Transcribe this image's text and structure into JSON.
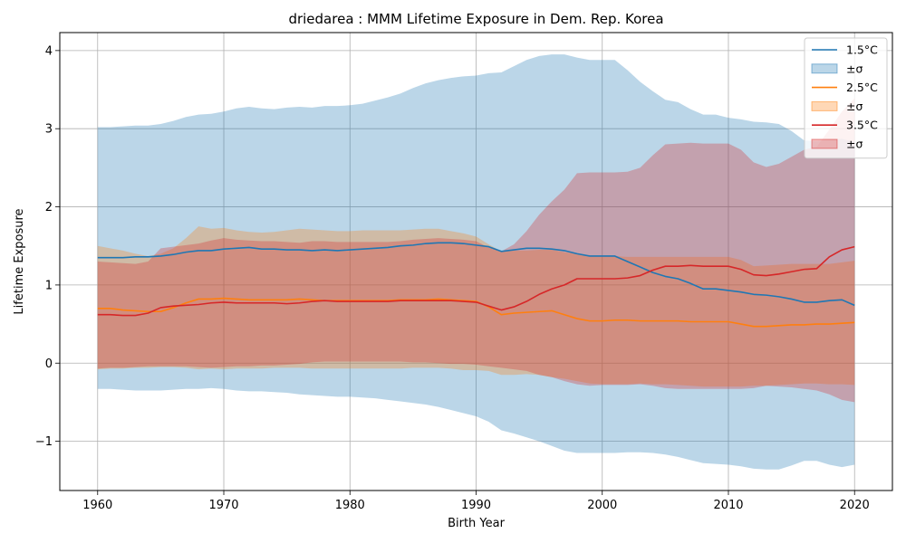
{
  "chart_data": {
    "type": "line",
    "title": "driedarea : MMM Lifetime Exposure in Dem. Rep. Korea",
    "xlabel": "Birth Year",
    "ylabel": "Lifetime Exposure",
    "xlim": [
      1957,
      2023
    ],
    "ylim": [
      -1.63,
      4.23
    ],
    "xticks": [
      1960,
      1970,
      1980,
      1990,
      2000,
      2010,
      2020
    ],
    "xtick_labels": [
      "1960",
      "1970",
      "1980",
      "1990",
      "2000",
      "2010",
      "2020"
    ],
    "yticks": [
      -1,
      0,
      1,
      2,
      3,
      4
    ],
    "ytick_labels": [
      "−1",
      "0",
      "1",
      "2",
      "3",
      "4"
    ],
    "grid": true,
    "legend_position": "top-right",
    "x": [
      1960,
      1961,
      1962,
      1963,
      1964,
      1965,
      1966,
      1967,
      1968,
      1969,
      1970,
      1971,
      1972,
      1973,
      1974,
      1975,
      1976,
      1977,
      1978,
      1979,
      1980,
      1981,
      1982,
      1983,
      1984,
      1985,
      1986,
      1987,
      1988,
      1989,
      1990,
      1991,
      1992,
      1993,
      1994,
      1995,
      1996,
      1997,
      1998,
      1999,
      2000,
      2001,
      2002,
      2003,
      2004,
      2005,
      2006,
      2007,
      2008,
      2009,
      2010,
      2011,
      2012,
      2013,
      2014,
      2015,
      2016,
      2017,
      2018,
      2019,
      2020
    ],
    "series": [
      {
        "name": "1.5°C",
        "band_label": "±σ",
        "color": "#1f77b4",
        "values": [
          1.35,
          1.35,
          1.35,
          1.36,
          1.36,
          1.37,
          1.39,
          1.42,
          1.44,
          1.44,
          1.46,
          1.47,
          1.48,
          1.46,
          1.46,
          1.45,
          1.45,
          1.44,
          1.45,
          1.44,
          1.45,
          1.46,
          1.47,
          1.48,
          1.5,
          1.51,
          1.53,
          1.54,
          1.54,
          1.53,
          1.51,
          1.49,
          1.43,
          1.45,
          1.47,
          1.47,
          1.46,
          1.44,
          1.4,
          1.37,
          1.37,
          1.37,
          1.3,
          1.23,
          1.16,
          1.11,
          1.08,
          1.02,
          0.95,
          0.95,
          0.93,
          0.91,
          0.88,
          0.87,
          0.85,
          0.82,
          0.78,
          0.78,
          0.8,
          0.81,
          0.74
        ],
        "upper": [
          3.02,
          3.02,
          3.03,
          3.04,
          3.04,
          3.06,
          3.1,
          3.15,
          3.18,
          3.19,
          3.22,
          3.26,
          3.28,
          3.26,
          3.25,
          3.27,
          3.28,
          3.27,
          3.29,
          3.29,
          3.3,
          3.32,
          3.36,
          3.4,
          3.45,
          3.52,
          3.58,
          3.62,
          3.65,
          3.67,
          3.68,
          3.71,
          3.72,
          3.8,
          3.88,
          3.93,
          3.95,
          3.95,
          3.91,
          3.88,
          3.88,
          3.88,
          3.75,
          3.6,
          3.48,
          3.37,
          3.34,
          3.25,
          3.18,
          3.18,
          3.14,
          3.12,
          3.09,
          3.08,
          3.06,
          2.97,
          2.85,
          2.84,
          2.86,
          2.87,
          2.83
        ],
        "lower": [
          -0.33,
          -0.33,
          -0.34,
          -0.35,
          -0.35,
          -0.35,
          -0.34,
          -0.33,
          -0.33,
          -0.32,
          -0.33,
          -0.35,
          -0.36,
          -0.36,
          -0.37,
          -0.38,
          -0.4,
          -0.41,
          -0.42,
          -0.43,
          -0.43,
          -0.44,
          -0.45,
          -0.47,
          -0.49,
          -0.51,
          -0.53,
          -0.56,
          -0.6,
          -0.64,
          -0.68,
          -0.75,
          -0.86,
          -0.9,
          -0.95,
          -1.0,
          -1.06,
          -1.12,
          -1.15,
          -1.15,
          -1.15,
          -1.15,
          -1.14,
          -1.14,
          -1.15,
          -1.17,
          -1.2,
          -1.24,
          -1.28,
          -1.29,
          -1.3,
          -1.32,
          -1.35,
          -1.36,
          -1.36,
          -1.31,
          -1.25,
          -1.25,
          -1.3,
          -1.33,
          -1.3
        ]
      },
      {
        "name": "2.5°C",
        "band_label": "±σ",
        "color": "#ff7f0e",
        "values": [
          0.7,
          0.7,
          0.68,
          0.67,
          0.66,
          0.66,
          0.71,
          0.77,
          0.82,
          0.82,
          0.83,
          0.82,
          0.81,
          0.81,
          0.81,
          0.81,
          0.82,
          0.81,
          0.8,
          0.8,
          0.8,
          0.8,
          0.8,
          0.8,
          0.81,
          0.81,
          0.81,
          0.82,
          0.81,
          0.8,
          0.79,
          0.72,
          0.62,
          0.64,
          0.65,
          0.66,
          0.67,
          0.62,
          0.57,
          0.54,
          0.54,
          0.55,
          0.55,
          0.54,
          0.54,
          0.54,
          0.54,
          0.53,
          0.53,
          0.53,
          0.53,
          0.5,
          0.47,
          0.47,
          0.48,
          0.49,
          0.49,
          0.5,
          0.5,
          0.51,
          0.52
        ],
        "upper": [
          1.5,
          1.47,
          1.44,
          1.4,
          1.37,
          1.4,
          1.47,
          1.6,
          1.75,
          1.72,
          1.73,
          1.7,
          1.68,
          1.67,
          1.68,
          1.7,
          1.72,
          1.71,
          1.7,
          1.69,
          1.69,
          1.7,
          1.7,
          1.7,
          1.7,
          1.71,
          1.72,
          1.72,
          1.69,
          1.66,
          1.62,
          1.52,
          1.43,
          1.44,
          1.44,
          1.45,
          1.45,
          1.42,
          1.4,
          1.37,
          1.37,
          1.37,
          1.36,
          1.36,
          1.36,
          1.36,
          1.36,
          1.36,
          1.36,
          1.36,
          1.36,
          1.32,
          1.24,
          1.25,
          1.26,
          1.27,
          1.27,
          1.27,
          1.27,
          1.29,
          1.31
        ],
        "lower": [
          -0.08,
          -0.07,
          -0.07,
          -0.06,
          -0.06,
          -0.05,
          -0.05,
          -0.06,
          -0.08,
          -0.07,
          -0.08,
          -0.07,
          -0.07,
          -0.07,
          -0.06,
          -0.06,
          -0.06,
          -0.07,
          -0.07,
          -0.07,
          -0.07,
          -0.07,
          -0.07,
          -0.07,
          -0.07,
          -0.06,
          -0.06,
          -0.06,
          -0.07,
          -0.09,
          -0.09,
          -0.1,
          -0.15,
          -0.15,
          -0.14,
          -0.15,
          -0.18,
          -0.2,
          -0.23,
          -0.26,
          -0.27,
          -0.27,
          -0.27,
          -0.26,
          -0.27,
          -0.27,
          -0.28,
          -0.29,
          -0.3,
          -0.3,
          -0.3,
          -0.3,
          -0.29,
          -0.29,
          -0.28,
          -0.27,
          -0.26,
          -0.26,
          -0.27,
          -0.27,
          -0.28
        ]
      },
      {
        "name": "3.5°C",
        "band_label": "±σ",
        "color": "#d62728",
        "values": [
          0.62,
          0.62,
          0.61,
          0.61,
          0.64,
          0.71,
          0.73,
          0.74,
          0.75,
          0.77,
          0.78,
          0.77,
          0.77,
          0.77,
          0.77,
          0.76,
          0.77,
          0.79,
          0.8,
          0.79,
          0.79,
          0.79,
          0.79,
          0.79,
          0.8,
          0.8,
          0.8,
          0.8,
          0.8,
          0.79,
          0.78,
          0.73,
          0.68,
          0.72,
          0.79,
          0.88,
          0.95,
          1.0,
          1.08,
          1.08,
          1.08,
          1.08,
          1.09,
          1.12,
          1.19,
          1.24,
          1.24,
          1.25,
          1.24,
          1.24,
          1.24,
          1.2,
          1.13,
          1.12,
          1.14,
          1.17,
          1.2,
          1.21,
          1.36,
          1.45,
          1.49
        ],
        "upper": [
          1.3,
          1.29,
          1.28,
          1.27,
          1.3,
          1.47,
          1.49,
          1.51,
          1.53,
          1.57,
          1.6,
          1.58,
          1.57,
          1.56,
          1.56,
          1.55,
          1.54,
          1.56,
          1.56,
          1.55,
          1.55,
          1.55,
          1.55,
          1.55,
          1.56,
          1.58,
          1.59,
          1.6,
          1.59,
          1.58,
          1.56,
          1.48,
          1.43,
          1.52,
          1.69,
          1.9,
          2.07,
          2.22,
          2.43,
          2.44,
          2.44,
          2.44,
          2.45,
          2.5,
          2.66,
          2.8,
          2.81,
          2.82,
          2.81,
          2.81,
          2.81,
          2.73,
          2.57,
          2.51,
          2.55,
          2.64,
          2.73,
          2.77,
          2.99,
          3.22,
          3.39
        ],
        "lower": [
          -0.07,
          -0.06,
          -0.06,
          -0.05,
          -0.04,
          -0.04,
          -0.04,
          -0.04,
          -0.05,
          -0.06,
          -0.05,
          -0.04,
          -0.04,
          -0.03,
          -0.03,
          -0.02,
          -0.01,
          0.01,
          0.02,
          0.02,
          0.02,
          0.02,
          0.02,
          0.02,
          0.02,
          0.01,
          0.01,
          0.0,
          -0.01,
          -0.01,
          -0.02,
          -0.04,
          -0.06,
          -0.08,
          -0.1,
          -0.15,
          -0.18,
          -0.23,
          -0.27,
          -0.29,
          -0.28,
          -0.28,
          -0.28,
          -0.27,
          -0.29,
          -0.32,
          -0.33,
          -0.33,
          -0.33,
          -0.33,
          -0.33,
          -0.33,
          -0.32,
          -0.29,
          -0.3,
          -0.31,
          -0.33,
          -0.35,
          -0.4,
          -0.47,
          -0.5
        ]
      }
    ]
  }
}
